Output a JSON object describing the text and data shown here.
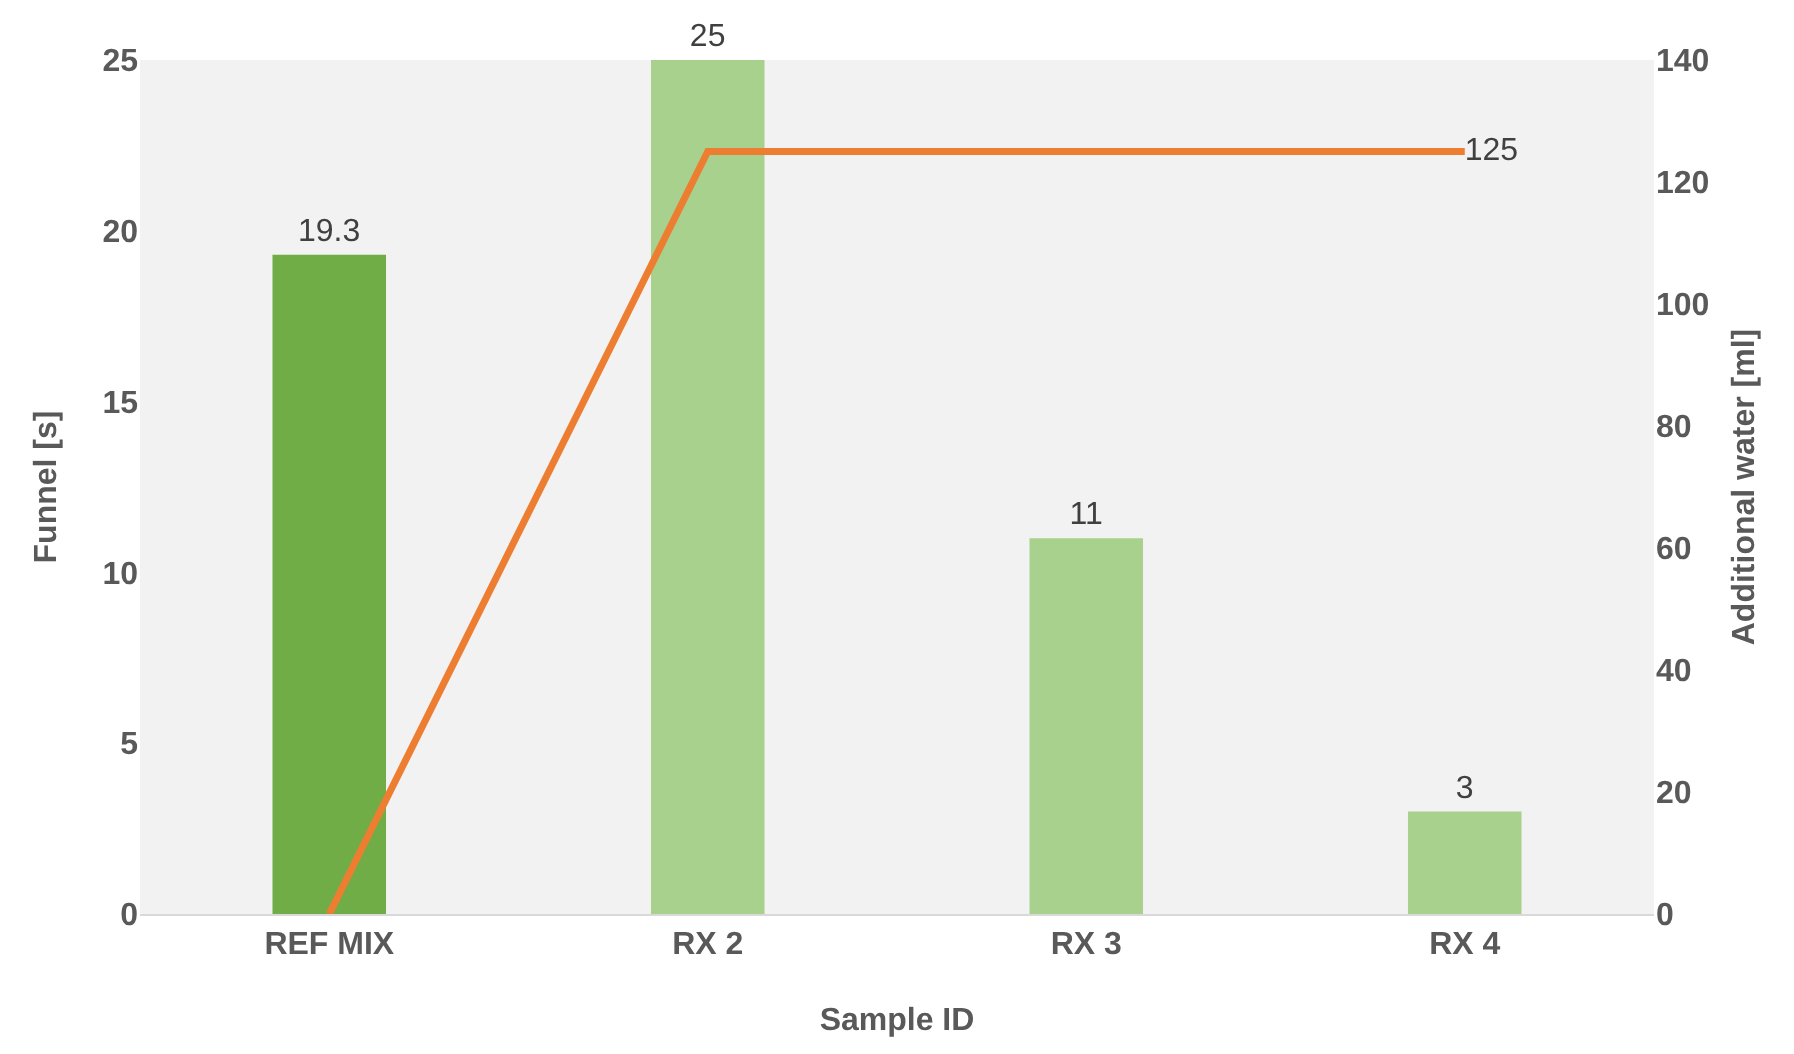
{
  "chart_data": {
    "type": "bar",
    "xlabel": "Sample ID",
    "ylabel": "Funnel [s]",
    "y2label": "Additional water [ml]",
    "categories": [
      "REF MIX",
      "RX 2",
      "RX 3",
      "RX 4"
    ],
    "series": [
      {
        "colors": [
          "#70ad47",
          "#a9d18e",
          "#a9d18e",
          "#a9d18e"
        ],
        "values": [
          19.3,
          25,
          11,
          3
        ],
        "value_labels": [
          "19.3",
          "25",
          "11",
          "3"
        ]
      },
      {
        "type": "line",
        "axis": "y2",
        "color": "#ed7d31",
        "values": [
          0,
          125,
          125,
          125
        ],
        "value_labels": [
          null,
          null,
          null,
          "125"
        ],
        "marker": "none",
        "line_style": "solid"
      }
    ],
    "ylim": [
      0,
      25
    ],
    "yticks": [
      0,
      5,
      10,
      15,
      20,
      25
    ],
    "y2lim": [
      0,
      140
    ],
    "y2ticks": [
      0,
      20,
      40,
      60,
      80,
      100,
      120,
      140
    ],
    "grid": false,
    "legend": false
  }
}
